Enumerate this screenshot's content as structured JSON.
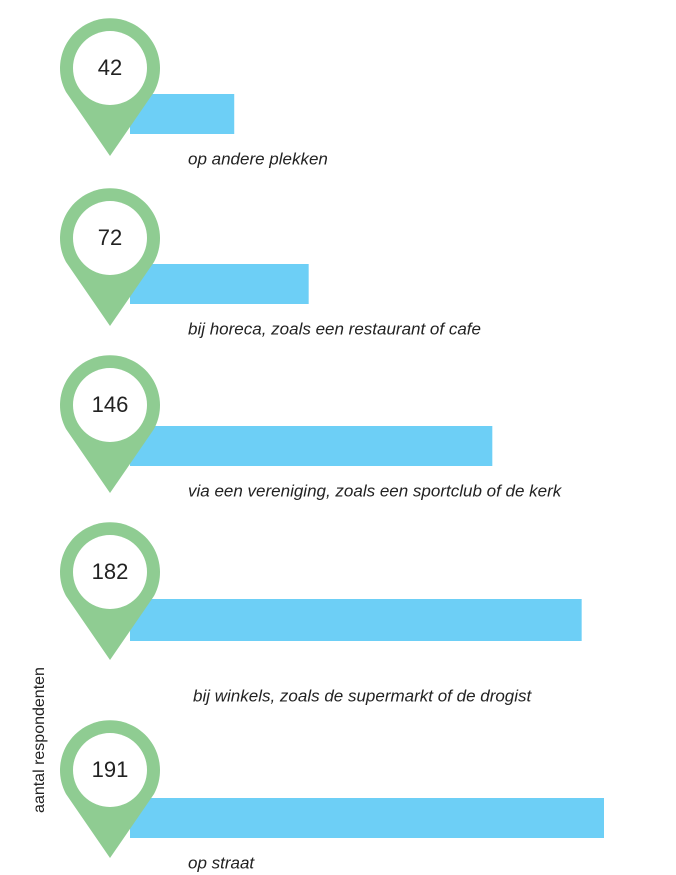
{
  "chart_data": {
    "type": "bar",
    "orientation": "horizontal",
    "x_label": "aantal respondenten",
    "categories": [
      "op andere plekken",
      "bij horeca, zoals een restaurant of cafe",
      "via een vereniging, zoals een sportclub of de kerk",
      "bij winkels, zoals de supermarkt of de drogist",
      "op straat"
    ],
    "values": [
      42,
      72,
      146,
      182,
      191
    ],
    "color": "#6dcff6",
    "marker_color": "#8fcc92"
  }
}
